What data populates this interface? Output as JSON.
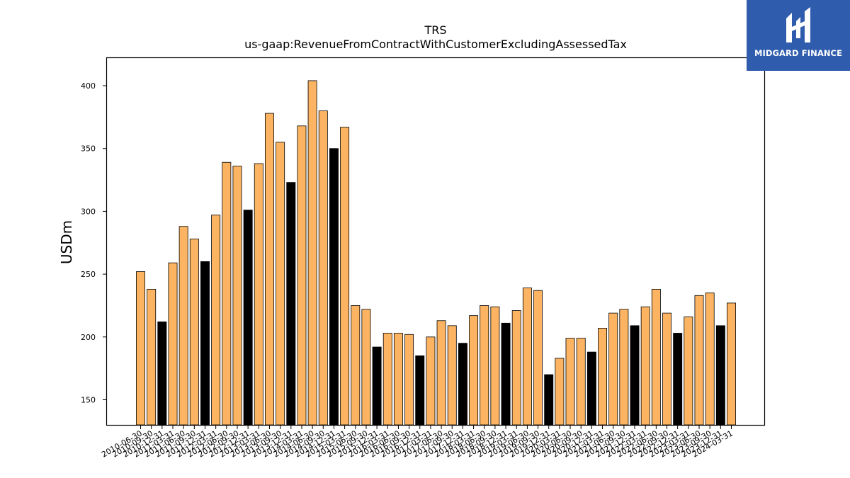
{
  "chart_data": {
    "type": "bar",
    "title": "TRS",
    "subtitle": "us-gaap:RevenueFromContractWithCustomerExcludingAssessedTax",
    "ylabel": "USDm",
    "xlabel": "",
    "ylim": [
      130,
      422
    ],
    "yticks": [
      150,
      200,
      250,
      300,
      350,
      400
    ],
    "grid": false,
    "colors": {
      "quarter": "#fdb462",
      "fiscal_q4": "#000000",
      "edge": "#000000"
    },
    "categories": [
      "2010-06-30",
      "2010-09-30",
      "2010-12-31",
      "2011-03-31",
      "2011-06-30",
      "2011-09-30",
      "2011-12-31",
      "2012-03-31",
      "2012-06-30",
      "2012-09-30",
      "2012-12-31",
      "2013-03-31",
      "2013-06-30",
      "2013-09-30",
      "2013-12-31",
      "2014-03-31",
      "2014-06-30",
      "2014-09-30",
      "2014-12-31",
      "2015-03-31",
      "2015-06-30",
      "2015-09-30",
      "2015-12-31",
      "2016-03-31",
      "2016-06-30",
      "2016-09-30",
      "2016-12-31",
      "2017-03-31",
      "2017-06-30",
      "2017-09-30",
      "2017-12-31",
      "2018-03-31",
      "2018-06-30",
      "2018-09-30",
      "2018-12-31",
      "2019-03-31",
      "2019-06-30",
      "2019-09-30",
      "2019-12-31",
      "2020-03-31",
      "2020-06-30",
      "2020-09-30",
      "2020-12-31",
      "2021-03-31",
      "2021-06-30",
      "2021-09-30",
      "2021-12-31",
      "2022-03-31",
      "2022-06-30",
      "2022-09-30",
      "2022-12-31",
      "2023-03-31",
      "2023-06-30",
      "2023-09-30",
      "2023-12-31",
      "2024-03-31"
    ],
    "values": [
      252,
      238,
      212,
      259,
      288,
      278,
      260,
      297,
      339,
      336,
      301,
      338,
      378,
      355,
      323,
      368,
      404,
      380,
      350,
      367,
      225,
      222,
      192,
      203,
      203,
      202,
      185,
      200,
      213,
      209,
      195,
      217,
      225,
      224,
      211,
      221,
      239,
      237,
      170,
      183,
      199,
      199,
      188,
      207,
      219,
      222,
      209,
      224,
      238,
      219,
      203,
      216,
      233,
      235,
      209,
      227
    ],
    "highlight": [
      false,
      false,
      true,
      false,
      false,
      false,
      true,
      false,
      false,
      false,
      true,
      false,
      false,
      false,
      true,
      false,
      false,
      false,
      true,
      false,
      false,
      false,
      true,
      false,
      false,
      false,
      true,
      false,
      false,
      false,
      true,
      false,
      false,
      false,
      true,
      false,
      false,
      false,
      true,
      false,
      false,
      false,
      true,
      false,
      false,
      false,
      true,
      false,
      false,
      false,
      true,
      false,
      false,
      false,
      true,
      false
    ]
  },
  "logo": {
    "text": "MIDGARD FINANCE"
  }
}
